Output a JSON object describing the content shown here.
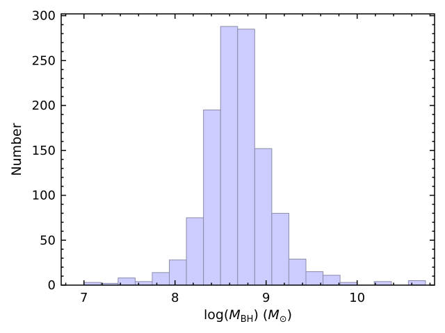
{
  "chart_data": {
    "type": "bar",
    "style": "histogram",
    "xlabel": {
      "prefix": "log(",
      "var": "M",
      "var_sub": "BH",
      "mid": ") (",
      "unit": "M",
      "unit_sub": "⊙",
      "suffix": ")"
    },
    "ylabel": "Number",
    "xlim": [
      6.75,
      10.85
    ],
    "ylim": [
      0,
      302
    ],
    "xticks": [
      {
        "value": 7,
        "label": "7"
      },
      {
        "value": 8,
        "label": "8"
      },
      {
        "value": 9,
        "label": "9"
      },
      {
        "value": 10,
        "label": "10"
      }
    ],
    "yticks": [
      {
        "value": 0,
        "label": "0"
      },
      {
        "value": 50,
        "label": "50"
      },
      {
        "value": 100,
        "label": "100"
      },
      {
        "value": 150,
        "label": "150"
      },
      {
        "value": 200,
        "label": "200"
      },
      {
        "value": 250,
        "label": "250"
      },
      {
        "value": 300,
        "label": "300"
      }
    ],
    "bin_width": 0.1875,
    "bins": [
      {
        "x0": 7.0,
        "count": 3
      },
      {
        "x0": 7.1875,
        "count": 2
      },
      {
        "x0": 7.375,
        "count": 8
      },
      {
        "x0": 7.5625,
        "count": 4
      },
      {
        "x0": 7.75,
        "count": 14
      },
      {
        "x0": 7.9375,
        "count": 28
      },
      {
        "x0": 8.125,
        "count": 75
      },
      {
        "x0": 8.3125,
        "count": 195
      },
      {
        "x0": 8.5,
        "count": 288
      },
      {
        "x0": 8.6875,
        "count": 285
      },
      {
        "x0": 8.875,
        "count": 152
      },
      {
        "x0": 9.0625,
        "count": 80
      },
      {
        "x0": 9.25,
        "count": 29
      },
      {
        "x0": 9.4375,
        "count": 15
      },
      {
        "x0": 9.625,
        "count": 11
      },
      {
        "x0": 9.8125,
        "count": 3
      },
      {
        "x0": 10.0,
        "count": 0
      },
      {
        "x0": 10.1875,
        "count": 4
      },
      {
        "x0": 10.375,
        "count": 0
      },
      {
        "x0": 10.5625,
        "count": 5
      }
    ],
    "colors": {
      "bar_fill": "#ccccff",
      "bar_edge": "#8a8aa8",
      "axis": "#000000"
    },
    "grid": false
  }
}
